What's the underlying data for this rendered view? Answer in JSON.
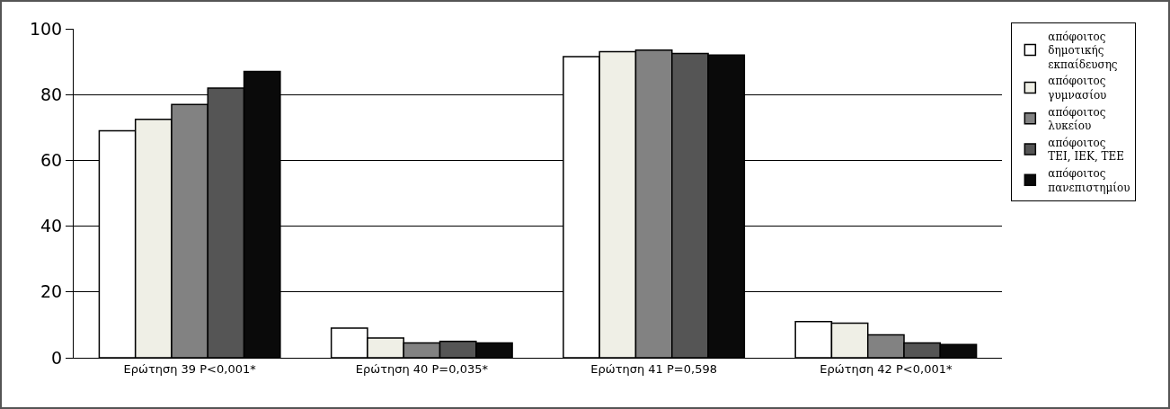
{
  "chart_data": {
    "type": "bar",
    "categories": [
      "Ερώτηση 39 P<0,001*",
      "Ερώτηση 40 P=0,035*",
      "Ερώτηση 41 P=0,598",
      "Ερώτηση 42 P<0,001*"
    ],
    "series": [
      {
        "name": "απόφοιτος δημοτικής εκπαίδευσης",
        "color": "#ffffff",
        "values": [
          69,
          9,
          91.5,
          11
        ]
      },
      {
        "name": "απόφοιτος γυμνασίου",
        "color": "#efefe6",
        "values": [
          72.5,
          6,
          93,
          10.5
        ]
      },
      {
        "name": "απόφοιτος λυκείου",
        "color": "#828282",
        "values": [
          77,
          4.5,
          93.5,
          7
        ]
      },
      {
        "name": "απόφοιτος TEI, IEK, TEE",
        "color": "#555555",
        "values": [
          82,
          5,
          92.5,
          4.5
        ]
      },
      {
        "name": "απόφοιτος πανεπιστημίου",
        "color": "#0a0a0a",
        "values": [
          87,
          4.5,
          92,
          4
        ]
      }
    ],
    "ylim": [
      0,
      100
    ],
    "yticks": [
      0,
      20,
      40,
      60,
      80,
      100
    ],
    "grid": "y",
    "legend": "right"
  }
}
